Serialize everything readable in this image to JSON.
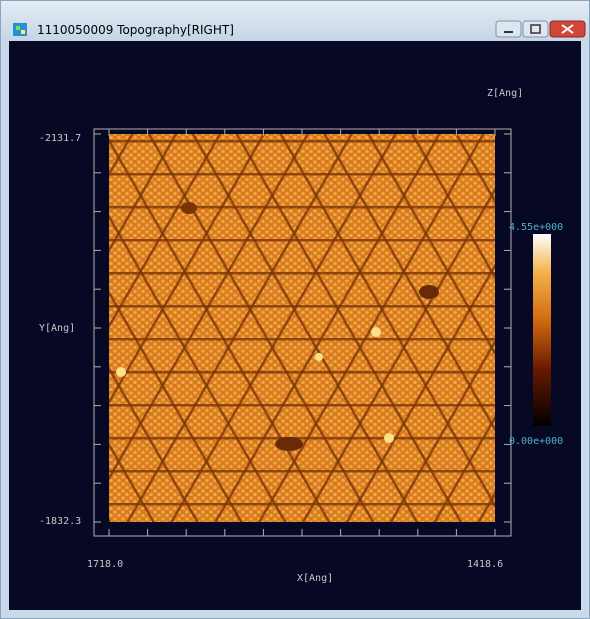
{
  "window": {
    "title": "1110050009 Topography[RIGHT]"
  },
  "z_axis": {
    "label": "Z[Ang]",
    "max_label": "4.55e+000",
    "min_label": "0.00e+000"
  },
  "y_axis": {
    "label": "Y[Ang]",
    "top_label": "-2131.7",
    "bottom_label": "-1832.3"
  },
  "x_axis": {
    "label": "X[Ang]",
    "left_label": "1718.0",
    "right_label": "1418.6"
  }
}
